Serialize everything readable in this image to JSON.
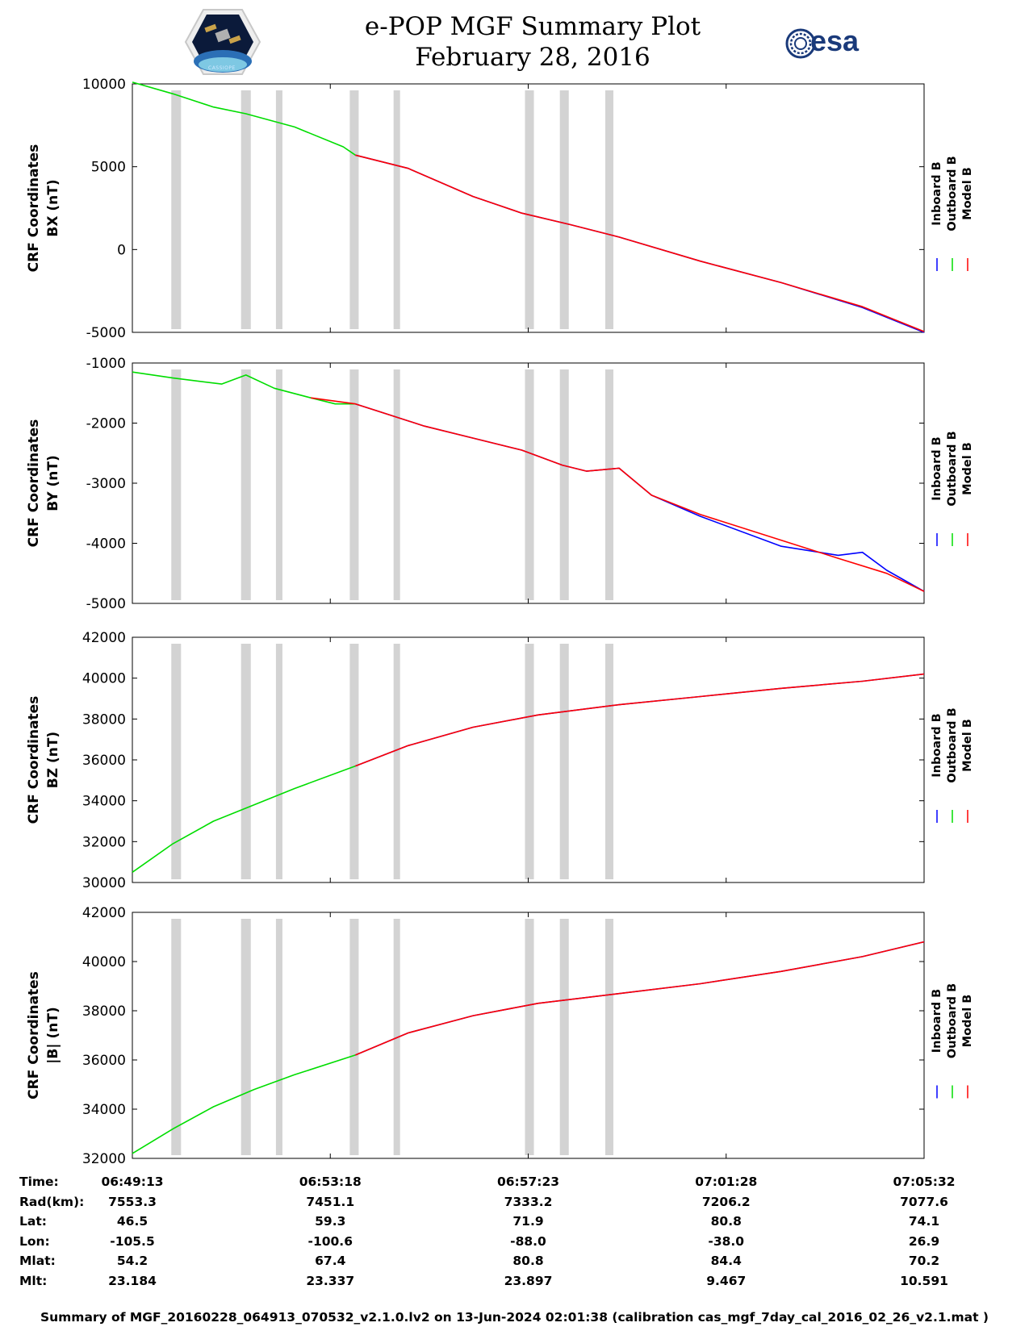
{
  "header": {
    "title": "e-POP MGF Summary Plot",
    "date": "February 28, 2016",
    "left_logo": "CASSIOPE",
    "right_logo": "esa"
  },
  "colors": {
    "inboard": "#0000ff",
    "outboard": "#00dd00",
    "model": "#ff0000",
    "gap": "#d3d3d3"
  },
  "chart_data": [
    {
      "type": "line",
      "ylabel": [
        "CRF Coordinates",
        "BX (nT)"
      ],
      "ylim": [
        -5000,
        10000
      ],
      "yticks": [
        -5000,
        0,
        5000,
        10000
      ],
      "x_range": [
        0,
        976
      ],
      "legend": [
        "Inboard B",
        "Outboard B",
        "Model B"
      ],
      "series": [
        {
          "name": "Outboard B",
          "x": [
            0,
            50,
            100,
            140,
            200,
            260,
            275
          ],
          "y": [
            10100,
            9400,
            8600,
            8200,
            7400,
            6200,
            5700
          ]
        },
        {
          "name": "Inboard B",
          "x": [
            275,
            340,
            420,
            480,
            540,
            600,
            700,
            800,
            900,
            976
          ],
          "y": [
            5700,
            4900,
            3200,
            2200,
            1500,
            750,
            -700,
            -2000,
            -3500,
            -5000
          ]
        },
        {
          "name": "Model B",
          "x": [
            275,
            340,
            420,
            480,
            540,
            600,
            700,
            800,
            900,
            976
          ],
          "y": [
            5700,
            4900,
            3200,
            2200,
            1500,
            750,
            -700,
            -2000,
            -3450,
            -4950
          ]
        }
      ]
    },
    {
      "type": "line",
      "ylabel": [
        "CRF Coordinates",
        "BY (nT)"
      ],
      "ylim": [
        -5000,
        -1000
      ],
      "yticks": [
        -5000,
        -4000,
        -3000,
        -2000,
        -1000
      ],
      "x_range": [
        0,
        976
      ],
      "legend": [
        "Inboard B",
        "Outboard B",
        "Model B"
      ],
      "series": [
        {
          "name": "Outboard B",
          "x": [
            0,
            50,
            110,
            140,
            175,
            220,
            250,
            275
          ],
          "y": [
            -1150,
            -1250,
            -1350,
            -1200,
            -1420,
            -1580,
            -1680,
            -1680
          ]
        },
        {
          "name": "Inboard B",
          "x": [
            275,
            360,
            420,
            480,
            530,
            560,
            600,
            640,
            700,
            800,
            870,
            900,
            930,
            976
          ],
          "y": [
            -1680,
            -2050,
            -2250,
            -2450,
            -2700,
            -2800,
            -2750,
            -3200,
            -3550,
            -4050,
            -4200,
            -4150,
            -4450,
            -4800
          ]
        },
        {
          "name": "Model B",
          "x": [
            220,
            275,
            360,
            420,
            480,
            530,
            560,
            600,
            640,
            700,
            800,
            870,
            930,
            976
          ],
          "y": [
            -1580,
            -1680,
            -2050,
            -2250,
            -2450,
            -2700,
            -2800,
            -2750,
            -3200,
            -3520,
            -3950,
            -4250,
            -4500,
            -4800
          ]
        }
      ]
    },
    {
      "type": "line",
      "ylabel": [
        "CRF Coordinates",
        "BZ (nT)"
      ],
      "ylim": [
        30000,
        42000
      ],
      "yticks": [
        30000,
        32000,
        34000,
        36000,
        38000,
        40000,
        42000
      ],
      "x_range": [
        0,
        976
      ],
      "legend": [
        "Inboard B",
        "Outboard B",
        "Model B"
      ],
      "series": [
        {
          "name": "Outboard B",
          "x": [
            0,
            50,
            100,
            150,
            200,
            275
          ],
          "y": [
            30500,
            31900,
            33000,
            33800,
            34600,
            35700
          ]
        },
        {
          "name": "Inboard B",
          "x": [
            275,
            340,
            420,
            500,
            600,
            700,
            800,
            900,
            976
          ],
          "y": [
            35700,
            36700,
            37600,
            38200,
            38700,
            39100,
            39500,
            39850,
            40200
          ]
        },
        {
          "name": "Model B",
          "x": [
            275,
            340,
            420,
            500,
            600,
            700,
            800,
            900,
            976
          ],
          "y": [
            35700,
            36700,
            37600,
            38200,
            38700,
            39100,
            39500,
            39850,
            40200
          ]
        }
      ]
    },
    {
      "type": "line",
      "ylabel": [
        "CRF Coordinates",
        "|B| (nT)"
      ],
      "ylim": [
        32000,
        42000
      ],
      "yticks": [
        32000,
        34000,
        36000,
        38000,
        40000,
        42000
      ],
      "x_range": [
        0,
        976
      ],
      "legend": [
        "Inboard B",
        "Outboard B",
        "Model B"
      ],
      "series": [
        {
          "name": "Outboard B",
          "x": [
            0,
            50,
            100,
            150,
            200,
            275
          ],
          "y": [
            32200,
            33200,
            34100,
            34800,
            35400,
            36200
          ]
        },
        {
          "name": "Inboard B",
          "x": [
            275,
            340,
            420,
            500,
            600,
            700,
            800,
            900,
            976
          ],
          "y": [
            36200,
            37100,
            37800,
            38300,
            38700,
            39100,
            39600,
            40200,
            40800
          ]
        },
        {
          "name": "Model B",
          "x": [
            275,
            340,
            420,
            500,
            600,
            700,
            800,
            900,
            976
          ],
          "y": [
            36200,
            37100,
            37800,
            38300,
            38700,
            39100,
            39600,
            40200,
            40800
          ]
        }
      ]
    }
  ],
  "gap_intervals": [
    [
      48,
      60
    ],
    [
      134,
      146
    ],
    [
      177,
      185
    ],
    [
      268,
      279
    ],
    [
      322,
      330
    ],
    [
      484,
      495
    ],
    [
      527,
      538
    ],
    [
      583,
      593
    ]
  ],
  "time_table": {
    "labels": [
      "Time:",
      "Rad(km):",
      "Lat:",
      "Lon:",
      "Mlat:",
      "Mlt:"
    ],
    "columns": [
      {
        "x": 0,
        "values": [
          "06:49:13",
          "7553.3",
          "46.5",
          "-105.5",
          "54.2",
          "23.184"
        ]
      },
      {
        "x": 244,
        "values": [
          "06:53:18",
          "7451.1",
          "59.3",
          "-100.6",
          "67.4",
          "23.337"
        ]
      },
      {
        "x": 488,
        "values": [
          "06:57:23",
          "7333.2",
          "71.9",
          "-88.0",
          "80.8",
          "23.897"
        ]
      },
      {
        "x": 732,
        "values": [
          "07:01:28",
          "7206.2",
          "80.8",
          "-38.0",
          "84.4",
          "9.467"
        ]
      },
      {
        "x": 976,
        "values": [
          "07:05:32",
          "7077.6",
          "74.1",
          "26.9",
          "70.2",
          "10.591"
        ]
      }
    ]
  },
  "footer": "Summary of MGF_20160228_064913_070532_v2.1.0.lv2 on 13-Jun-2024 02:01:38 (calibration cas_mgf_7day_cal_2016_02_26_v2.1.mat )"
}
